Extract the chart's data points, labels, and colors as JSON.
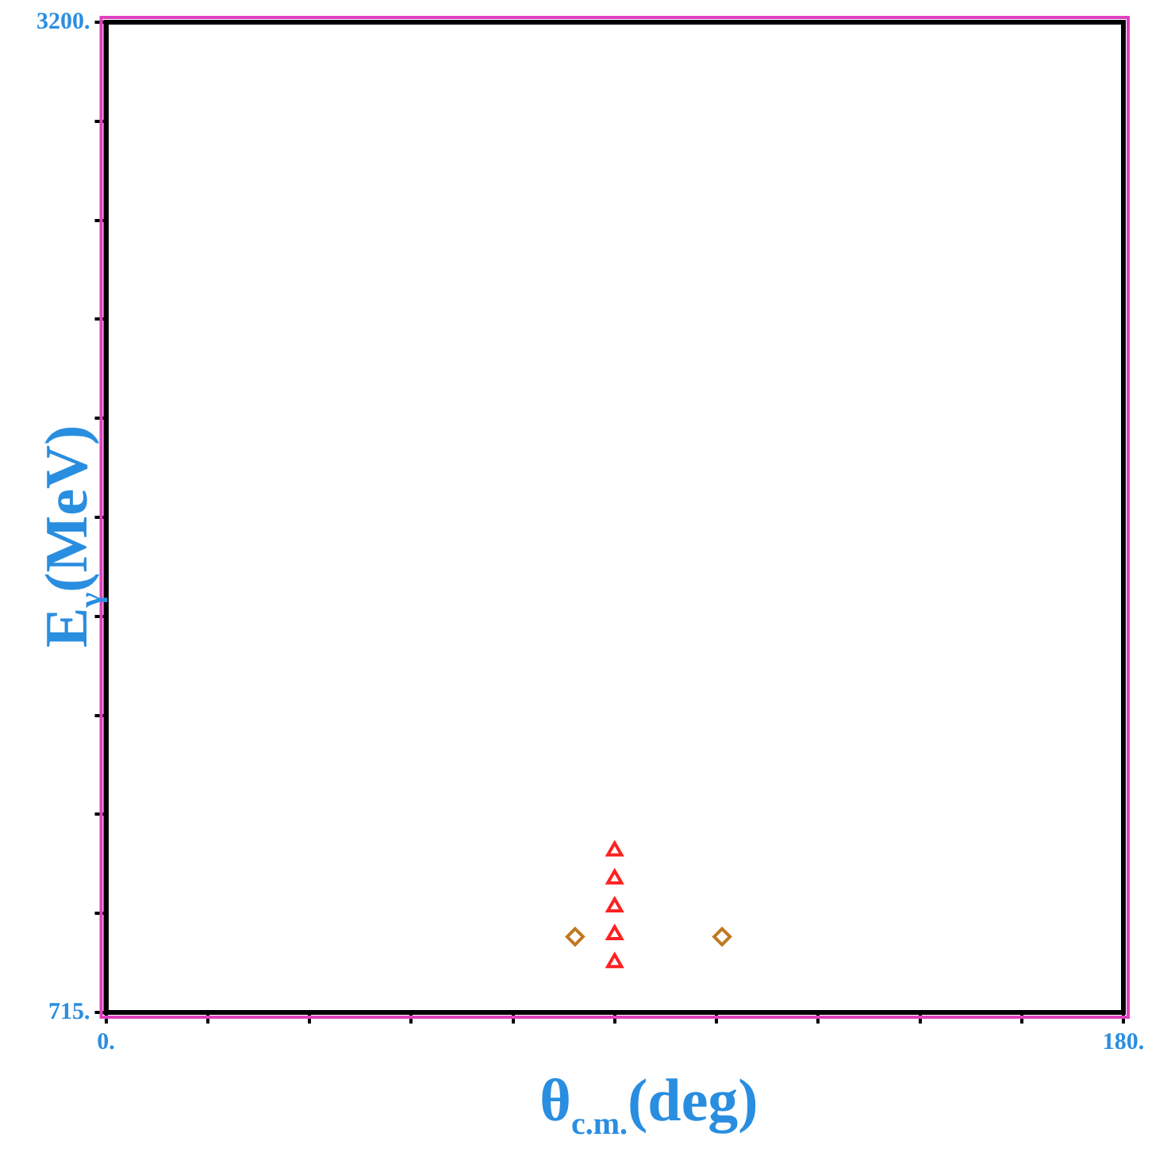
{
  "chart_data": {
    "type": "scatter",
    "xlabel": "θ$_{c.m.}$(deg)",
    "ylabel": "E$_{γ}$(MeV)",
    "xlim": [
      0,
      180
    ],
    "ylim": [
      715,
      3200
    ],
    "xticks": [
      {
        "value": 0,
        "label": "0."
      },
      {
        "value": 18,
        "label": null
      },
      {
        "value": 36,
        "label": null
      },
      {
        "value": 54,
        "label": null
      },
      {
        "value": 72,
        "label": null
      },
      {
        "value": 90,
        "label": null
      },
      {
        "value": 108,
        "label": null
      },
      {
        "value": 126,
        "label": null
      },
      {
        "value": 144,
        "label": null
      },
      {
        "value": 162,
        "label": null
      },
      {
        "value": 180,
        "label": "180."
      }
    ],
    "yticks": [
      {
        "value": 715,
        "label": "715."
      },
      {
        "value": 963.5,
        "label": null
      },
      {
        "value": 1212,
        "label": null
      },
      {
        "value": 1460.5,
        "label": null
      },
      {
        "value": 1709,
        "label": null
      },
      {
        "value": 1957.5,
        "label": null
      },
      {
        "value": 2206,
        "label": null
      },
      {
        "value": 2454.5,
        "label": null
      },
      {
        "value": 2703,
        "label": null
      },
      {
        "value": 2951.5,
        "label": null
      },
      {
        "value": 3200,
        "label": "3200."
      }
    ],
    "grid": false,
    "legend": false,
    "series": [
      {
        "color": "#ff2020",
        "marker": "triangle",
        "x": [
          90,
          90,
          90,
          90,
          90
        ],
        "values": [
          840,
          910,
          980,
          1050,
          1120
        ]
      },
      {
        "color": "#c07820",
        "marker": "diamond",
        "x": [
          83,
          109
        ],
        "values": [
          905,
          905
        ]
      }
    ]
  }
}
